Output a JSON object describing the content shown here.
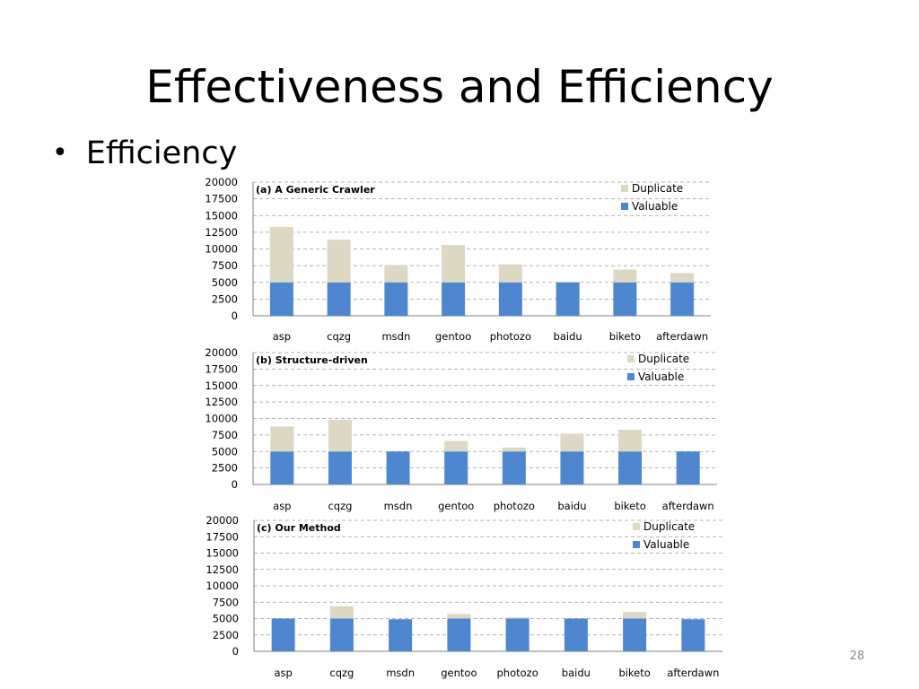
{
  "slide": {
    "title": "Effectiveness and Efficiency",
    "bullet": "Efficiency",
    "page_number": "28"
  },
  "colors": {
    "duplicate": "#ddd8c4",
    "valuable": "#4f86d0",
    "grid": "#9a9a9a",
    "axis": "#7f7f7f"
  },
  "chart_data": [
    {
      "type": "bar",
      "stacked": true,
      "title": "(a) A Generic Crawler",
      "categories": [
        "asp",
        "cqzg",
        "msdn",
        "gentoo",
        "photozo",
        "baidu",
        "biketo",
        "afterdawn"
      ],
      "y_ticks": [
        "0",
        "2500",
        "5000",
        "7500",
        "10000",
        "12500",
        "15000",
        "17500",
        "20000"
      ],
      "ylim": [
        0,
        20000
      ],
      "grid": true,
      "legend_position": "top-right",
      "series": [
        {
          "name": "Valuable",
          "values": [
            5000,
            5000,
            5000,
            5000,
            5000,
            5000,
            5000,
            5000
          ]
        },
        {
          "name": "Duplicate",
          "values": [
            8300,
            6400,
            2600,
            5600,
            2700,
            100,
            1900,
            1400
          ]
        }
      ]
    },
    {
      "type": "bar",
      "stacked": true,
      "title": "(b) Structure-driven",
      "categories": [
        "asp",
        "cqzg",
        "msdn",
        "gentoo",
        "photozo",
        "baidu",
        "biketo",
        "afterdawn"
      ],
      "y_ticks": [
        "0",
        "2500",
        "5000",
        "7500",
        "10000",
        "12500",
        "15000",
        "17500",
        "20000"
      ],
      "ylim": [
        0,
        20000
      ],
      "grid": true,
      "legend_position": "top-right",
      "series": [
        {
          "name": "Valuable",
          "values": [
            5000,
            5000,
            5000,
            5000,
            5000,
            5000,
            5000,
            5000
          ]
        },
        {
          "name": "Duplicate",
          "values": [
            3800,
            4800,
            0,
            1600,
            600,
            2700,
            3300,
            0
          ]
        }
      ]
    },
    {
      "type": "bar",
      "stacked": true,
      "title": "(c) Our Method",
      "categories": [
        "asp",
        "cqzg",
        "msdn",
        "gentoo",
        "photozo",
        "baidu",
        "biketo",
        "afterdawn"
      ],
      "y_ticks": [
        "0",
        "2500",
        "5000",
        "7500",
        "10000",
        "12500",
        "15000",
        "17500",
        "20000"
      ],
      "ylim": [
        0,
        20000
      ],
      "grid": true,
      "legend_position": "top-right",
      "series": [
        {
          "name": "Valuable",
          "values": [
            5000,
            5000,
            4900,
            5000,
            5000,
            5000,
            5000,
            4900
          ]
        },
        {
          "name": "Duplicate",
          "values": [
            0,
            1900,
            0,
            700,
            200,
            0,
            1000,
            0
          ]
        }
      ]
    }
  ]
}
